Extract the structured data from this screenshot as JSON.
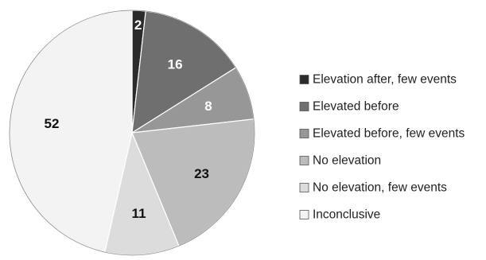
{
  "chart_data": {
    "type": "pie",
    "title": "",
    "start_angle": "12 o'clock",
    "direction": "clockwise",
    "legend_placement": "right",
    "series": [
      {
        "name": "",
        "slices": [
          {
            "label": "Elevation after, few events",
            "value": 2,
            "display": "2",
            "color": "#2b2b2b",
            "label_color": "#ffffff"
          },
          {
            "label": "Elevated before",
            "value": 16,
            "display": "16",
            "color": "#6f6f6f",
            "label_color": "#ffffff"
          },
          {
            "label": "Elevated before, few events",
            "value": 8,
            "display": "8",
            "color": "#979797",
            "label_color": "#ffffff"
          },
          {
            "label": "No elevation",
            "value": 23,
            "display": "23",
            "color": "#bcbcbc",
            "label_color": "#111111"
          },
          {
            "label": "No elevation, few events",
            "value": 11,
            "display": "11",
            "color": "#dcdcdc",
            "label_color": "#111111"
          },
          {
            "label": "Inconclusive",
            "value": 52,
            "display": "52",
            "color": "#f3f3f3",
            "label_color": "#111111"
          }
        ]
      }
    ]
  }
}
